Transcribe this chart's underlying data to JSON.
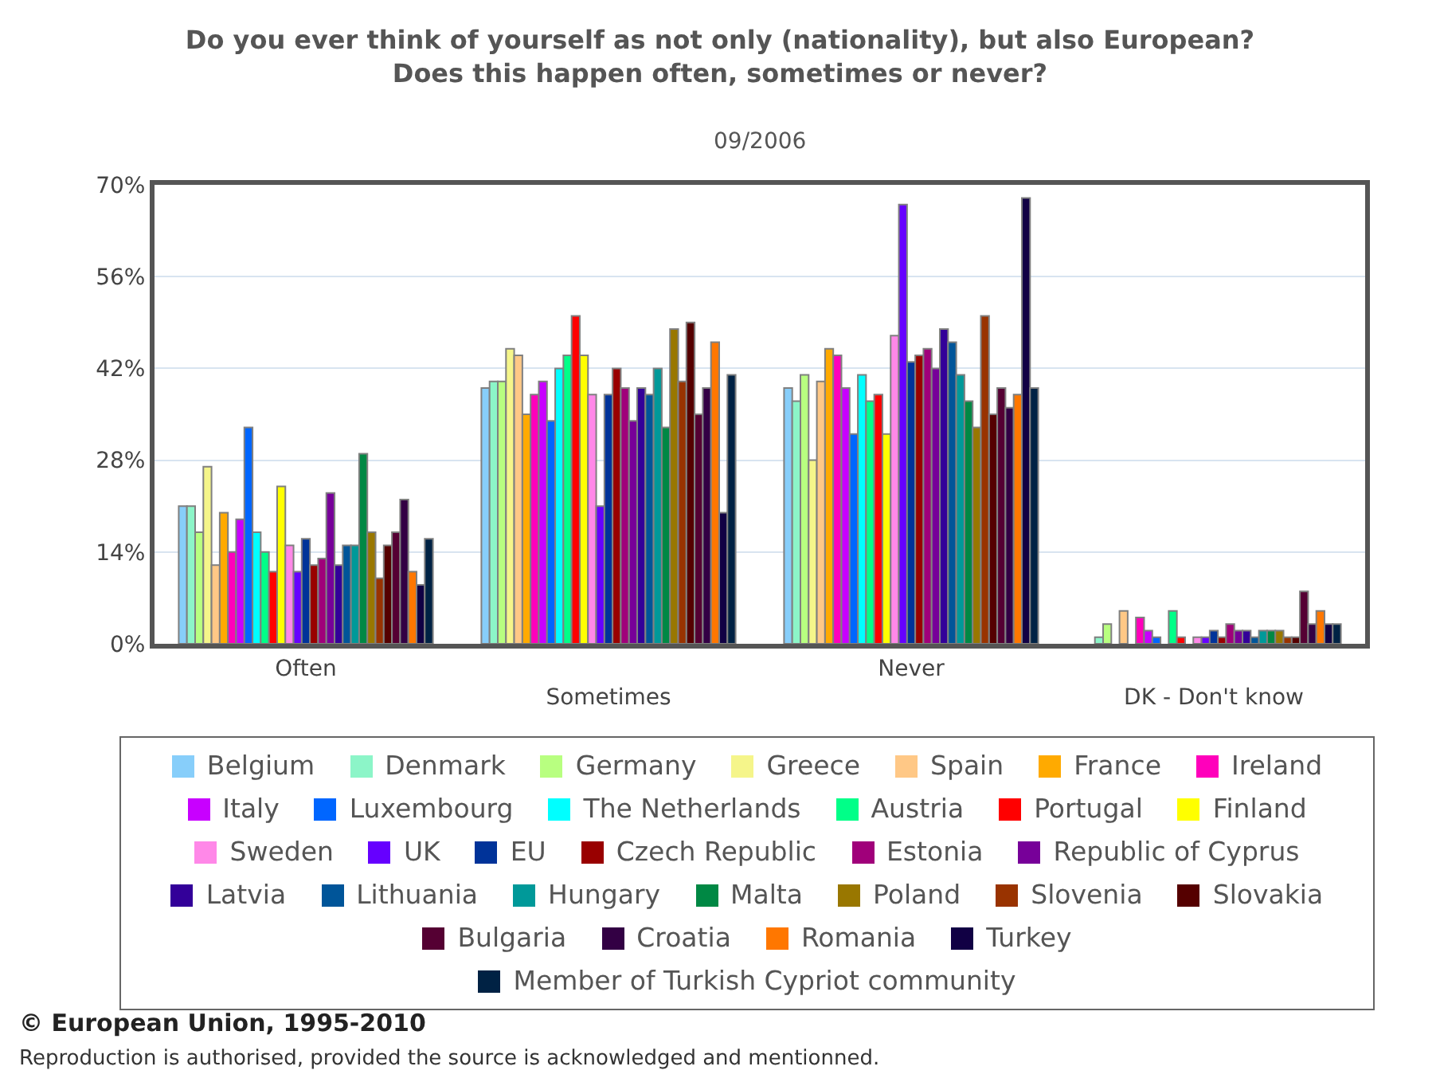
{
  "chart_data": {
    "type": "bar",
    "title": "Do you ever think of yourself as not only (nationality), but also European?\nDoes this happen often, sometimes or never?",
    "subtitle": "09/2006",
    "categories": [
      "Often",
      "Sometimes",
      "Never",
      "DK - Don't know"
    ],
    "ylim": [
      0,
      70
    ],
    "yticks": [
      {
        "value": 0,
        "label": "0%"
      },
      {
        "value": 14,
        "label": "14%"
      },
      {
        "value": 28,
        "label": "28%"
      },
      {
        "value": 42,
        "label": "42%"
      },
      {
        "value": 56,
        "label": "56%"
      },
      {
        "value": 70,
        "label": "70%"
      }
    ],
    "grid": "y",
    "legend": "bottom",
    "annotations": [
      "© European Union, 1995-2010",
      "Reproduction is authorised, provided the source is acknowledged and mentionned."
    ],
    "series": [
      {
        "name": "Belgium",
        "color": "#87cefa",
        "values": [
          21,
          39,
          39,
          null
        ]
      },
      {
        "name": "Denmark",
        "color": "#8cf5c8",
        "values": [
          21,
          40,
          37,
          1
        ]
      },
      {
        "name": "Germany",
        "color": "#b8ff80",
        "values": [
          17,
          40,
          41,
          3
        ]
      },
      {
        "name": "Greece",
        "color": "#f5f58a",
        "values": [
          27,
          45,
          28,
          null
        ]
      },
      {
        "name": "Spain",
        "color": "#ffc886",
        "values": [
          12,
          44,
          40,
          5
        ]
      },
      {
        "name": "France",
        "color": "#ffaa00",
        "values": [
          20,
          35,
          45,
          null
        ]
      },
      {
        "name": "Ireland",
        "color": "#ff00bb",
        "values": [
          14,
          38,
          44,
          4
        ]
      },
      {
        "name": "Italy",
        "color": "#c800ff",
        "values": [
          19,
          40,
          39,
          2
        ]
      },
      {
        "name": "Luxembourg",
        "color": "#0066ff",
        "values": [
          33,
          34,
          32,
          1
        ]
      },
      {
        "name": "The Netherlands",
        "color": "#00ffff",
        "values": [
          17,
          42,
          41,
          null
        ]
      },
      {
        "name": "Austria",
        "color": "#00ff88",
        "values": [
          14,
          44,
          37,
          5
        ]
      },
      {
        "name": "Portugal",
        "color": "#ff0000",
        "values": [
          11,
          50,
          38,
          1
        ]
      },
      {
        "name": "Finland",
        "color": "#ffff00",
        "values": [
          24,
          44,
          32,
          null
        ]
      },
      {
        "name": "Sweden",
        "color": "#ff88e8",
        "values": [
          15,
          38,
          47,
          1
        ]
      },
      {
        "name": "UK",
        "color": "#6600ff",
        "values": [
          11,
          21,
          67,
          1
        ]
      },
      {
        "name": "EU",
        "color": "#003399",
        "values": [
          16,
          38,
          43,
          2
        ]
      },
      {
        "name": "Czech Republic",
        "color": "#990000",
        "values": [
          12,
          42,
          44,
          1
        ]
      },
      {
        "name": "Estonia",
        "color": "#a0007a",
        "values": [
          13,
          39,
          45,
          3
        ]
      },
      {
        "name": "Republic of Cyprus",
        "color": "#770099",
        "values": [
          23,
          34,
          42,
          2
        ]
      },
      {
        "name": "Latvia",
        "color": "#330099",
        "values": [
          12,
          39,
          48,
          2
        ]
      },
      {
        "name": "Lithuania",
        "color": "#005599",
        "values": [
          15,
          38,
          46,
          1
        ]
      },
      {
        "name": "Hungary",
        "color": "#009999",
        "values": [
          15,
          42,
          41,
          2
        ]
      },
      {
        "name": "Malta",
        "color": "#008844",
        "values": [
          29,
          33,
          37,
          2
        ]
      },
      {
        "name": "Poland",
        "color": "#997700",
        "values": [
          17,
          48,
          33,
          2
        ]
      },
      {
        "name": "Slovenia",
        "color": "#993300",
        "values": [
          10,
          40,
          50,
          1
        ]
      },
      {
        "name": "Slovakia",
        "color": "#550000",
        "values": [
          15,
          49,
          35,
          1
        ]
      },
      {
        "name": "Bulgaria",
        "color": "#550033",
        "values": [
          17,
          35,
          39,
          8
        ]
      },
      {
        "name": "Croatia",
        "color": "#330044",
        "values": [
          22,
          39,
          36,
          3
        ]
      },
      {
        "name": "Romania",
        "color": "#ff7700",
        "values": [
          11,
          46,
          38,
          5
        ]
      },
      {
        "name": "Turkey",
        "color": "#110044",
        "values": [
          9,
          20,
          68,
          3
        ]
      },
      {
        "name": "Member of Turkish Cypriot community",
        "color": "#002244",
        "values": [
          16,
          41,
          39,
          3
        ]
      }
    ]
  }
}
